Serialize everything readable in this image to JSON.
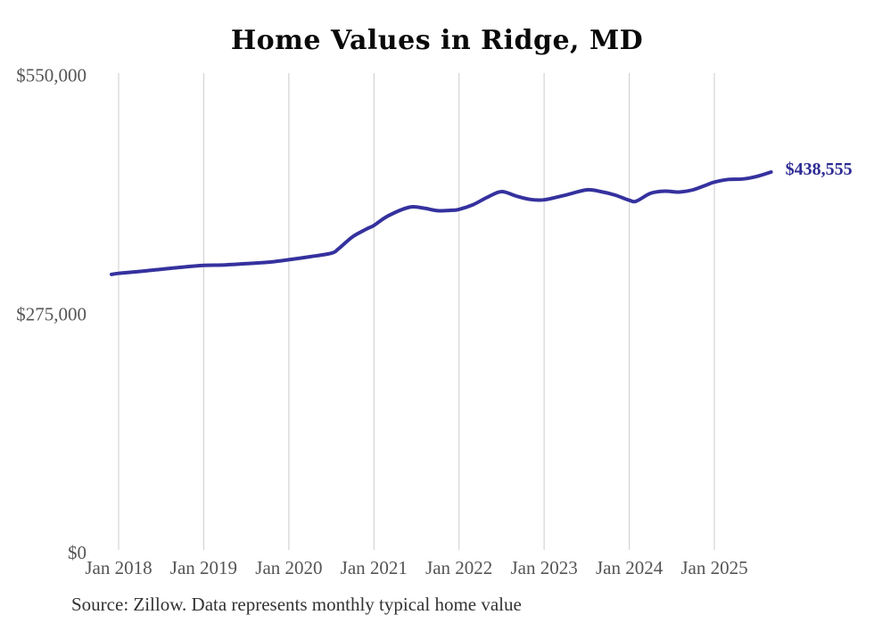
{
  "title": "Home Values in Ridge, MD",
  "source": "Source: Zillow. Data represents monthly typical home value",
  "colors": {
    "line": "#35319e",
    "value_label": "#2e2b94",
    "grid": "#cccccc",
    "axis_text": "#555555",
    "title_text": "#0a0a0a",
    "source_text": "#333333",
    "background": "#ffffff"
  },
  "chart_data": {
    "type": "line",
    "title": "Home Values in Ridge, MD",
    "xlabel": "",
    "ylabel": "",
    "ylim": [
      0,
      550000
    ],
    "grid": "vertical-only",
    "legend": "none",
    "end_label": "$438,555",
    "latest_value": 438555,
    "y_ticks": [
      {
        "value": 0,
        "label": "$0"
      },
      {
        "value": 275000,
        "label": "$275,000"
      },
      {
        "value": 550000,
        "label": "$550,000"
      }
    ],
    "x_ticks": [
      {
        "date": "2018-01",
        "label": "Jan 2018"
      },
      {
        "date": "2019-01",
        "label": "Jan 2019"
      },
      {
        "date": "2020-01",
        "label": "Jan 2020"
      },
      {
        "date": "2021-01",
        "label": "Jan 2021"
      },
      {
        "date": "2022-01",
        "label": "Jan 2022"
      },
      {
        "date": "2023-01",
        "label": "Jan 2023"
      },
      {
        "date": "2024-01",
        "label": "Jan 2024"
      },
      {
        "date": "2025-01",
        "label": "Jan 2025"
      }
    ],
    "series": [
      {
        "name": "Monthly typical home value",
        "points": [
          [
            "2017-12",
            320500
          ],
          [
            "2018-01",
            321800
          ],
          [
            "2018-04",
            324000
          ],
          [
            "2018-07",
            326500
          ],
          [
            "2018-10",
            329000
          ],
          [
            "2019-01",
            331000
          ],
          [
            "2019-04",
            331500
          ],
          [
            "2019-07",
            333000
          ],
          [
            "2019-10",
            334500
          ],
          [
            "2020-01",
            337500
          ],
          [
            "2020-04",
            341000
          ],
          [
            "2020-07",
            345000
          ],
          [
            "2020-08",
            350000
          ],
          [
            "2020-10",
            364000
          ],
          [
            "2020-12",
            373000
          ],
          [
            "2021-01",
            377000
          ],
          [
            "2021-03",
            388000
          ],
          [
            "2021-06",
            398000
          ],
          [
            "2021-08",
            397000
          ],
          [
            "2021-10",
            394000
          ],
          [
            "2021-12",
            394500
          ],
          [
            "2022-01",
            395500
          ],
          [
            "2022-03",
            401000
          ],
          [
            "2022-05",
            409500
          ],
          [
            "2022-07",
            416000
          ],
          [
            "2022-09",
            411000
          ],
          [
            "2022-11",
            407000
          ],
          [
            "2023-01",
            406500
          ],
          [
            "2023-04",
            412000
          ],
          [
            "2023-07",
            418000
          ],
          [
            "2023-09",
            416000
          ],
          [
            "2023-11",
            412000
          ],
          [
            "2024-01",
            406000
          ],
          [
            "2024-02",
            405000
          ],
          [
            "2024-04",
            414000
          ],
          [
            "2024-06",
            416500
          ],
          [
            "2024-08",
            415500
          ],
          [
            "2024-10",
            418000
          ],
          [
            "2024-12",
            424000
          ],
          [
            "2025-01",
            427000
          ],
          [
            "2025-03",
            430000
          ],
          [
            "2025-05",
            430500
          ],
          [
            "2025-07",
            433500
          ],
          [
            "2025-09",
            438555
          ]
        ]
      }
    ]
  }
}
